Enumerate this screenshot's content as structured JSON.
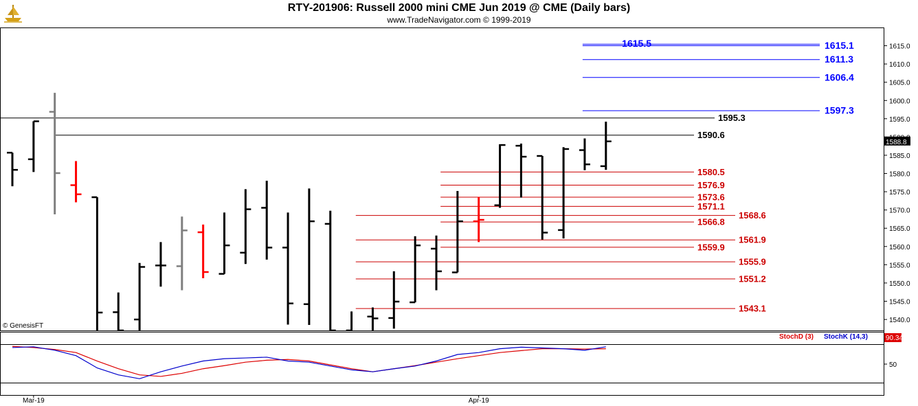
{
  "header": {
    "title": "RTY-201906:  Russell 2000 mini CME Jun 2019 @ CME  (Daily bars)",
    "subtitle": "www.TradeNavigator.com © 1999-2019",
    "copyright": "© GenesisFT",
    "logo_icon": "gold-ship-logo-icon"
  },
  "colors": {
    "up_bar": "#000000",
    "down_bar": "#000000",
    "gray_bar": "#7f7f7f",
    "red_bar": "#ff0000",
    "blue_level": "#0000ff",
    "black_level": "#000000",
    "red_level": "#cc0000",
    "stoch_d": "#dd0000",
    "stoch_k": "#0000cc",
    "last_price_bg": "#000000",
    "stoch_value_bg": "#dd0000"
  },
  "chart_data": [
    {
      "type": "ohlc",
      "title": "RTY-201906:  Russell 2000 mini CME Jun 2019 @ CME  (Daily bars)",
      "y_axis_ticks": [
        "1615.0",
        "1610.0",
        "1605.0",
        "1600.0",
        "1595.0",
        "1590.0",
        "1585.0",
        "1580.0",
        "1575.0",
        "1570.0",
        "1565.0",
        "1560.0",
        "1555.0",
        "1550.0",
        "1545.0",
        "1540.0"
      ],
      "ylim": [
        1537,
        1620
      ],
      "x_labels": [
        {
          "label": "Mar-19",
          "index": 1
        },
        {
          "label": "Apr-19",
          "index": 22
        }
      ],
      "last_price_label": "1588.8",
      "bars": [
        {
          "o": 1585.7,
          "h": 1585.7,
          "l": 1576.5,
          "c": 1581.0,
          "color": "black"
        },
        {
          "o": 1583.9,
          "h": 1594.3,
          "l": 1580.4,
          "c": 1594.3,
          "color": "black"
        },
        {
          "o": 1596.9,
          "h": 1602.1,
          "l": 1568.8,
          "c": 1580.1,
          "color": "gray"
        },
        {
          "o": 1576.8,
          "h": 1583.4,
          "l": 1572.1,
          "c": 1574.3,
          "color": "red"
        },
        {
          "o": 1573.5,
          "h": 1573.5,
          "l": 1533.0,
          "c": 1541.9,
          "color": "black"
        },
        {
          "o": 1542.0,
          "h": 1547.4,
          "l": 1532.8,
          "c": 1537.0,
          "color": "black"
        },
        {
          "o": 1540.0,
          "h": 1555.5,
          "l": 1530.0,
          "c": 1554.4,
          "color": "black"
        },
        {
          "o": 1554.8,
          "h": 1561.2,
          "l": 1549.0,
          "c": 1554.8,
          "color": "black"
        },
        {
          "o": 1554.6,
          "h": 1568.2,
          "l": 1548.0,
          "c": 1564.4,
          "color": "gray"
        },
        {
          "o": 1563.9,
          "h": 1566.0,
          "l": 1551.3,
          "c": 1553.0,
          "color": "red"
        },
        {
          "o": 1552.5,
          "h": 1569.3,
          "l": 1552.5,
          "c": 1560.3,
          "color": "black"
        },
        {
          "o": 1558.3,
          "h": 1575.7,
          "l": 1555.2,
          "c": 1570.2,
          "color": "black"
        },
        {
          "o": 1570.6,
          "h": 1578.0,
          "l": 1556.4,
          "c": 1559.7,
          "color": "black"
        },
        {
          "o": 1559.7,
          "h": 1569.3,
          "l": 1538.6,
          "c": 1544.4,
          "color": "black"
        },
        {
          "o": 1544.2,
          "h": 1575.9,
          "l": 1538.5,
          "c": 1566.9,
          "color": "black"
        },
        {
          "o": 1566.2,
          "h": 1569.8,
          "l": 1535.0,
          "c": 1537.0,
          "color": "black"
        },
        {
          "o": 1537.0,
          "h": 1542.2,
          "l": 1533.0,
          "c": 1535.0,
          "color": "black"
        },
        {
          "o": 1540.8,
          "h": 1543.3,
          "l": 1534.0,
          "c": 1540.3,
          "color": "black"
        },
        {
          "o": 1540.4,
          "h": 1553.2,
          "l": 1537.5,
          "c": 1544.9,
          "color": "black"
        },
        {
          "o": 1544.7,
          "h": 1562.8,
          "l": 1544.7,
          "c": 1560.3,
          "color": "black"
        },
        {
          "o": 1559.4,
          "h": 1563.0,
          "l": 1548.0,
          "c": 1553.2,
          "color": "black"
        },
        {
          "o": 1552.9,
          "h": 1575.2,
          "l": 1552.9,
          "c": 1566.9,
          "color": "black"
        },
        {
          "o": 1566.9,
          "h": 1573.6,
          "l": 1561.2,
          "c": 1567.3,
          "color": "red"
        },
        {
          "o": 1571.3,
          "h": 1588.0,
          "l": 1570.6,
          "c": 1587.8,
          "color": "black"
        },
        {
          "o": 1587.6,
          "h": 1588.2,
          "l": 1573.4,
          "c": 1584.6,
          "color": "black"
        },
        {
          "o": 1584.8,
          "h": 1584.8,
          "l": 1561.9,
          "c": 1563.8,
          "color": "black"
        },
        {
          "o": 1564.5,
          "h": 1587.2,
          "l": 1562.2,
          "c": 1586.7,
          "color": "black"
        },
        {
          "o": 1586.4,
          "h": 1589.6,
          "l": 1580.9,
          "c": 1582.5,
          "color": "black"
        },
        {
          "o": 1582.0,
          "h": 1594.2,
          "l": 1581.0,
          "c": 1588.8,
          "color": "black"
        }
      ],
      "levels": [
        {
          "value": 1615.5,
          "label": "1615.5",
          "color": "blue",
          "label_side": "left",
          "from_index": 26.9
        },
        {
          "value": 1615.1,
          "label": "1615.1",
          "color": "blue",
          "label_side": "right",
          "from_index": 26.9
        },
        {
          "value": 1611.3,
          "label": "1611.3",
          "color": "blue",
          "label_side": "right",
          "from_index": 26.9
        },
        {
          "value": 1606.4,
          "label": "1606.4",
          "color": "blue",
          "label_side": "right",
          "from_index": 26.9
        },
        {
          "value": 1597.3,
          "label": "1597.3",
          "color": "blue",
          "label_side": "right",
          "from_index": 26.9
        },
        {
          "value": 1595.3,
          "label": "1595.3",
          "color": "black",
          "label_side": "mid",
          "from_index": -3
        },
        {
          "value": 1590.6,
          "label": "1590.6",
          "color": "black",
          "label_side": "mid",
          "from_index": 2
        },
        {
          "value": 1580.5,
          "label": "1580.5",
          "color": "red",
          "label_side": "mid",
          "from_index": 20.2
        },
        {
          "value": 1576.9,
          "label": "1576.9",
          "color": "red",
          "label_side": "mid",
          "from_index": 20.2
        },
        {
          "value": 1573.6,
          "label": "1573.6",
          "color": "red",
          "label_side": "mid",
          "from_index": 20.2
        },
        {
          "value": 1571.1,
          "label": "1571.1",
          "color": "red",
          "label_side": "mid",
          "from_index": 20.2
        },
        {
          "value": 1568.6,
          "label": "1568.6",
          "color": "red",
          "label_side": "mid2",
          "from_index": 16.2
        },
        {
          "value": 1566.8,
          "label": "1566.8",
          "color": "red",
          "label_side": "mid",
          "from_index": 20.2
        },
        {
          "value": 1561.9,
          "label": "1561.9",
          "color": "red",
          "label_side": "mid2",
          "from_index": 16.2
        },
        {
          "value": 1559.9,
          "label": "1559.9",
          "color": "red",
          "label_side": "mid",
          "from_index": 20.2
        },
        {
          "value": 1555.9,
          "label": "1555.9",
          "color": "red",
          "label_side": "mid2",
          "from_index": 16.2
        },
        {
          "value": 1551.2,
          "label": "1551.2",
          "color": "red",
          "label_side": "mid2",
          "from_index": 16.2
        },
        {
          "value": 1543.1,
          "label": "1543.1",
          "color": "red",
          "label_side": "mid2",
          "from_index": 16.2
        }
      ]
    },
    {
      "type": "line",
      "title": "Stochastic",
      "y_axis_ticks": [
        "50"
      ],
      "ylim": [
        0,
        100
      ],
      "legend": [
        {
          "name": "StochD (3)",
          "color": "red"
        },
        {
          "name": "StochK (14,3)",
          "color": "blue"
        }
      ],
      "value_label": "90.34",
      "series": [
        {
          "name": "StochD (3)",
          "values": [
            96,
            93,
            88,
            80,
            58,
            38,
            22,
            18,
            26,
            38,
            46,
            55,
            60,
            62,
            58,
            48,
            38,
            30,
            38,
            46,
            55,
            64,
            72,
            80,
            85,
            90,
            90,
            89,
            90
          ]
        },
        {
          "name": "StochK (14,3)",
          "values": [
            93,
            95,
            86,
            72,
            40,
            22,
            12,
            30,
            45,
            58,
            64,
            66,
            68,
            58,
            55,
            45,
            35,
            30,
            38,
            45,
            58,
            75,
            80,
            90,
            94,
            92,
            90,
            86,
            95
          ]
        }
      ]
    }
  ]
}
